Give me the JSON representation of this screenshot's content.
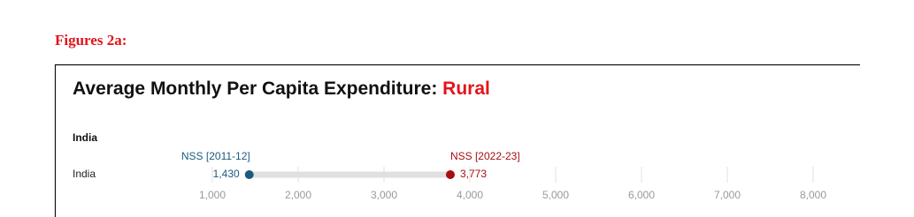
{
  "header": "Figures 2a:",
  "chart_data": {
    "type": "dumbbell",
    "title": "Average Monthly Per Capita Expenditure:",
    "title_highlight": "Rural",
    "title_highlight_color": "#e3141b",
    "group": "India",
    "categories": [
      "India"
    ],
    "series": [
      {
        "name": "NSS [2011-12]",
        "color": "#1b5a7d",
        "values": [
          1430
        ],
        "value_labels": [
          "1,430"
        ]
      },
      {
        "name": "NSS [2022-23]",
        "color": "#a50f12",
        "values": [
          3773
        ],
        "value_labels": [
          "3,773"
        ]
      }
    ],
    "xlim": [
      1000,
      8000
    ],
    "xticks": [
      {
        "value": 1000,
        "label": "1,000"
      },
      {
        "value": 2000,
        "label": "2,000"
      },
      {
        "value": 3000,
        "label": "3,000"
      },
      {
        "value": 4000,
        "label": "4,000"
      },
      {
        "value": 5000,
        "label": "5,000"
      },
      {
        "value": 6000,
        "label": "6,000"
      },
      {
        "value": 7000,
        "label": "7,000"
      },
      {
        "value": 8000,
        "label": "8,000"
      }
    ]
  }
}
